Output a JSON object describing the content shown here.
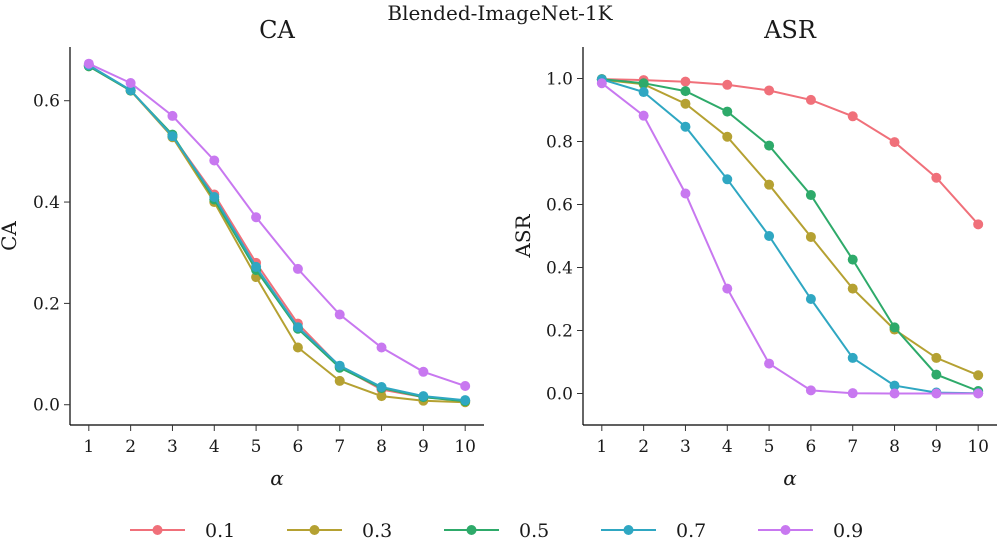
{
  "chart_data": {
    "type": "line",
    "suptitle": "Blended-ImageNet-1K",
    "legend": {
      "placement": "bottom",
      "entries": [
        "0.1",
        "0.3",
        "0.5",
        "0.7",
        "0.9"
      ]
    },
    "colors": {
      "0.1": "#F0707A",
      "0.3": "#B5A132",
      "0.5": "#2EAA6A",
      "0.7": "#2FA7C2",
      "0.9": "#C878F0"
    },
    "panels": [
      {
        "title": "CA",
        "xlabel": "α",
        "ylabel": "CA",
        "x": [
          1,
          2,
          3,
          4,
          5,
          6,
          7,
          8,
          9,
          10
        ],
        "xticks": [
          "1",
          "2",
          "3",
          "4",
          "5",
          "6",
          "7",
          "8",
          "9",
          "10"
        ],
        "ylim": [
          -0.04,
          0.706
        ],
        "yticks": [
          0.0,
          0.2,
          0.4,
          0.6
        ],
        "ytick_labels": [
          "0.0",
          "0.2",
          "0.4",
          "0.6"
        ],
        "series": [
          {
            "name": "0.1",
            "values": [
              0.67,
              0.62,
              0.53,
              0.415,
              0.28,
              0.16,
              0.075,
              0.03,
              0.015,
              0.008
            ]
          },
          {
            "name": "0.3",
            "values": [
              0.668,
              0.62,
              0.528,
              0.4,
              0.252,
              0.113,
              0.047,
              0.017,
              0.008,
              0.005
            ]
          },
          {
            "name": "0.5",
            "values": [
              0.668,
              0.62,
              0.533,
              0.405,
              0.266,
              0.15,
              0.073,
              0.033,
              0.015,
              0.007
            ]
          },
          {
            "name": "0.7",
            "values": [
              0.67,
              0.621,
              0.53,
              0.41,
              0.272,
              0.153,
              0.077,
              0.035,
              0.017,
              0.009
            ]
          },
          {
            "name": "0.9",
            "values": [
              0.673,
              0.635,
              0.57,
              0.482,
              0.37,
              0.268,
              0.178,
              0.113,
              0.065,
              0.037
            ]
          }
        ]
      },
      {
        "title": "ASR",
        "xlabel": "α",
        "ylabel": "ASR",
        "x": [
          1,
          2,
          3,
          4,
          5,
          6,
          7,
          8,
          9,
          10
        ],
        "xticks": [
          "1",
          "2",
          "3",
          "4",
          "5",
          "6",
          "7",
          "8",
          "9",
          "10"
        ],
        "ylim": [
          -0.1,
          1.1
        ],
        "yticks": [
          0.0,
          0.2,
          0.4,
          0.6,
          0.8,
          1.0
        ],
        "ytick_labels": [
          "0.0",
          "0.2",
          "0.4",
          "0.6",
          "0.8",
          "1.0"
        ],
        "series": [
          {
            "name": "0.1",
            "values": [
              0.998,
              0.995,
              0.99,
              0.98,
              0.962,
              0.932,
              0.88,
              0.798,
              0.685,
              0.537
            ]
          },
          {
            "name": "0.3",
            "values": [
              0.996,
              0.982,
              0.92,
              0.815,
              0.663,
              0.497,
              0.333,
              0.203,
              0.113,
              0.058
            ]
          },
          {
            "name": "0.5",
            "values": [
              0.998,
              0.985,
              0.96,
              0.895,
              0.787,
              0.63,
              0.425,
              0.21,
              0.06,
              0.008
            ]
          },
          {
            "name": "0.7",
            "values": [
              0.997,
              0.957,
              0.847,
              0.68,
              0.5,
              0.3,
              0.113,
              0.025,
              0.003,
              0.001
            ]
          },
          {
            "name": "0.9",
            "values": [
              0.985,
              0.882,
              0.635,
              0.333,
              0.095,
              0.01,
              0.001,
              0.0,
              0.0,
              0.0
            ]
          }
        ]
      }
    ]
  }
}
